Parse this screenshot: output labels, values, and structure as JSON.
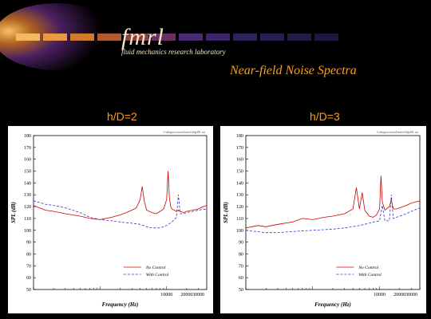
{
  "header": {
    "logo_word": "fmrl",
    "logo_subtitle": "fluid mechanics research laboratory",
    "page_title": "Near-field Noise Spectra",
    "colors": {
      "title": "#f5a020",
      "logo_text": "#f5e6c8",
      "banner_core": "#f7c060",
      "banner_dark": "#301a50"
    }
  },
  "chart_data": [
    {
      "type": "line",
      "title": "h/D=2",
      "path_label": "f:\\nhuprocessed\\tests\\f4dpf01.txt",
      "xlabel": "Frequency (Hz)",
      "ylabel": "SPL (dB)",
      "xscale": "log",
      "xlim": [
        100,
        40000
      ],
      "ylim": [
        50,
        180
      ],
      "yticks": [
        "50",
        "60",
        "70",
        "80",
        "90",
        "100",
        "110",
        "120",
        "130",
        "140",
        "150",
        "160",
        "170",
        "180"
      ],
      "xticks": [
        "10000",
        "20000",
        "30000"
      ],
      "legend": {
        "position": "bottom-right",
        "entries": [
          "No Control",
          "With Control"
        ]
      },
      "series": [
        {
          "name": "No Control",
          "color": "#cc0000",
          "dash": "solid",
          "x": [
            100,
            150,
            200,
            300,
            500,
            700,
            1000,
            1500,
            2000,
            2500,
            3000,
            3500,
            4000,
            4300,
            4600,
            5000,
            6000,
            7000,
            8000,
            9000,
            10000,
            10500,
            11000,
            11500,
            12000,
            14000,
            15000,
            16000,
            18000,
            20000,
            25000,
            30000,
            35000,
            40000
          ],
          "y": [
            121,
            117,
            116,
            114,
            112,
            110,
            109,
            111,
            113,
            115,
            117,
            119,
            126,
            137,
            125,
            117,
            115,
            114,
            116,
            118,
            126,
            150,
            128,
            120,
            118,
            116,
            117,
            116,
            115,
            116,
            117,
            118,
            120,
            121
          ]
        },
        {
          "name": "With Control",
          "color": "#3333cc",
          "dash": "dashed",
          "x": [
            100,
            150,
            200,
            300,
            500,
            700,
            1000,
            1500,
            2000,
            3000,
            4000,
            5000,
            6000,
            8000,
            10000,
            12000,
            14000,
            15000,
            16000,
            18000,
            20000,
            25000,
            30000,
            40000
          ],
          "y": [
            125,
            122,
            121,
            119,
            115,
            111,
            109,
            108,
            107,
            106,
            105,
            103,
            102,
            102,
            104,
            107,
            111,
            130,
            114,
            114,
            115,
            116,
            117,
            118
          ]
        }
      ]
    },
    {
      "type": "line",
      "title": "h/D=3",
      "path_label": "f:\\nhuprocessed\\tests\\f4dpf01.txt",
      "xlabel": "Frequency (Hz)",
      "ylabel": "SPL (dB)",
      "xscale": "log",
      "xlim": [
        100,
        40000
      ],
      "ylim": [
        50,
        180
      ],
      "yticks": [
        "50",
        "60",
        "70",
        "80",
        "90",
        "100",
        "110",
        "120",
        "130",
        "140",
        "150",
        "160",
        "170",
        "180"
      ],
      "xticks": [
        "10000",
        "20000",
        "30000"
      ],
      "legend": {
        "position": "bottom-right",
        "entries": [
          "No Control",
          "With Control"
        ]
      },
      "series": [
        {
          "name": "No Control",
          "color": "#cc0000",
          "dash": "solid",
          "x": [
            100,
            150,
            200,
            300,
            500,
            700,
            1000,
            1500,
            2000,
            3000,
            4000,
            4500,
            5000,
            5500,
            6000,
            7000,
            8000,
            9000,
            10000,
            10500,
            11000,
            12000,
            14000,
            15000,
            16000,
            18000,
            20000,
            25000,
            30000,
            40000
          ],
          "y": [
            102,
            104,
            103,
            105,
            107,
            110,
            109,
            111,
            112,
            114,
            118,
            136,
            118,
            132,
            117,
            112,
            111,
            113,
            118,
            146,
            124,
            117,
            120,
            126,
            118,
            118,
            119,
            121,
            123,
            125
          ]
        },
        {
          "name": "With Control",
          "color": "#3333cc",
          "dash": "dashed",
          "x": [
            100,
            200,
            300,
            500,
            1000,
            2000,
            3000,
            5000,
            7000,
            8000,
            10000,
            11000,
            12000,
            14000,
            15000,
            16000,
            18000,
            20000,
            25000,
            30000,
            40000
          ],
          "y": [
            100,
            98,
            98,
            99,
            100,
            101,
            102,
            104,
            106,
            107,
            108,
            121,
            108,
            108,
            130,
            110,
            111,
            112,
            114,
            116,
            119
          ]
        }
      ]
    }
  ]
}
